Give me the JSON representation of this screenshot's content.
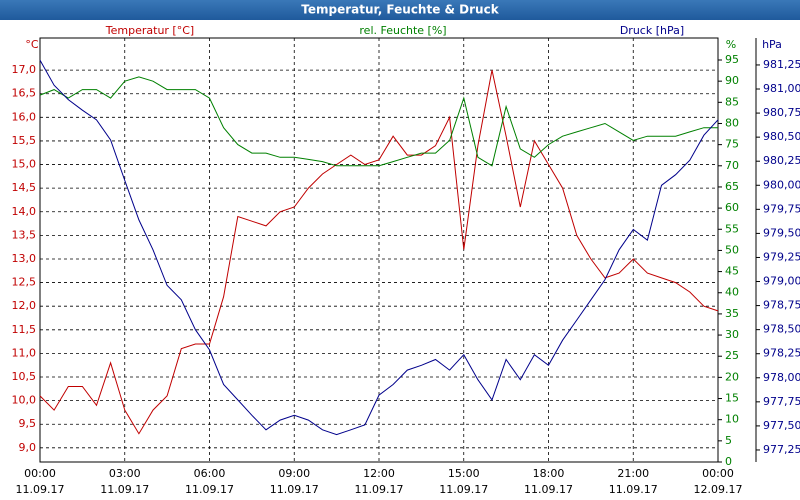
{
  "chart_data": {
    "type": "line",
    "title": "Temperatur, Feuchte & Druck",
    "grid": true,
    "x": [
      0,
      0.5,
      1,
      1.5,
      2,
      2.5,
      3,
      3.5,
      4,
      4.5,
      5,
      5.5,
      6,
      6.5,
      7,
      7.5,
      8,
      8.5,
      9,
      9.5,
      10,
      10.5,
      11,
      11.5,
      12,
      12.5,
      13,
      13.5,
      14,
      14.5,
      15,
      15.5,
      16,
      16.5,
      17,
      17.5,
      18,
      18.5,
      19,
      19.5,
      20,
      20.5,
      21,
      21.5,
      22,
      22.5,
      23,
      23.5,
      24
    ],
    "xlim": [
      0,
      24
    ],
    "xticks": [
      {
        "value": 0,
        "label": "00:00 11.09.17"
      },
      {
        "value": 3,
        "label": "03:00 11.09.17"
      },
      {
        "value": 6,
        "label": "06:00 11.09.17"
      },
      {
        "value": 9,
        "label": "09:00 11.09.17"
      },
      {
        "value": 12,
        "label": "12:00 11.09.17"
      },
      {
        "value": 15,
        "label": "15:00 11.09.17"
      },
      {
        "value": 18,
        "label": "18:00 11.09.17"
      },
      {
        "value": 21,
        "label": "21:00 11.09.17"
      },
      {
        "value": 24,
        "label": "00:00 12.09.17"
      }
    ],
    "ylim": [
      8.7,
      17.68
    ],
    "yticks": [
      {
        "value": 9.0,
        "label": "9,0"
      },
      {
        "value": 9.5,
        "label": "9,5"
      },
      {
        "value": 10.0,
        "label": "10,0"
      },
      {
        "value": 10.5,
        "label": "10,5"
      },
      {
        "value": 11.0,
        "label": "11,0"
      },
      {
        "value": 11.5,
        "label": "11,5"
      },
      {
        "value": 12.0,
        "label": "12,0"
      },
      {
        "value": 12.5,
        "label": "12,5"
      },
      {
        "value": 13.0,
        "label": "13,0"
      },
      {
        "value": 13.5,
        "label": "13,5"
      },
      {
        "value": 14.0,
        "label": "14,0"
      },
      {
        "value": 14.5,
        "label": "14,5"
      },
      {
        "value": 15.0,
        "label": "15,0"
      },
      {
        "value": 15.5,
        "label": "15,5"
      },
      {
        "value": 16.0,
        "label": "16,0"
      },
      {
        "value": 16.5,
        "label": "16,5"
      },
      {
        "value": 17.0,
        "label": "17,0"
      }
    ],
    "y2lim": [
      0,
      100.2
    ],
    "y2ticks": [
      0,
      5,
      10,
      15,
      20,
      25,
      30,
      35,
      40,
      45,
      50,
      55,
      60,
      65,
      70,
      75,
      80,
      85,
      90,
      95
    ],
    "y3lim": [
      977.125,
      981.53
    ],
    "y3ticks": [
      {
        "value": 977.25,
        "label": "977,25"
      },
      {
        "value": 977.5,
        "label": "977,50"
      },
      {
        "value": 977.75,
        "label": "977,75"
      },
      {
        "value": 978.0,
        "label": "978,00"
      },
      {
        "value": 978.25,
        "label": "978,25"
      },
      {
        "value": 978.5,
        "label": "978,50"
      },
      {
        "value": 978.75,
        "label": "978,75"
      },
      {
        "value": 979.0,
        "label": "979,00"
      },
      {
        "value": 979.25,
        "label": "979,25"
      },
      {
        "value": 979.5,
        "label": "979,50"
      },
      {
        "value": 979.75,
        "label": "979,75"
      },
      {
        "value": 980.0,
        "label": "980,00"
      },
      {
        "value": 980.25,
        "label": "980,25"
      },
      {
        "value": 980.5,
        "label": "980,50"
      },
      {
        "value": 980.75,
        "label": "980,75"
      },
      {
        "value": 981.0,
        "label": "981,00"
      },
      {
        "value": 981.25,
        "label": "981,25"
      }
    ],
    "series": [
      {
        "name": "Temperatur [°C]",
        "unit": "°C",
        "color": "#c00000",
        "axis": "y",
        "values": [
          10.1,
          9.8,
          10.3,
          10.3,
          9.9,
          10.8,
          9.8,
          9.3,
          9.8,
          10.1,
          11.1,
          11.2,
          11.2,
          12.2,
          13.9,
          13.8,
          13.7,
          14.0,
          14.1,
          14.5,
          14.8,
          15.0,
          15.2,
          15.0,
          15.1,
          15.6,
          15.2,
          15.2,
          15.4,
          16.0,
          13.2,
          15.4,
          17.0,
          15.6,
          14.1,
          15.5,
          15.0,
          14.5,
          13.5,
          13.0,
          12.6,
          12.7,
          13.0,
          12.7,
          12.6,
          12.5,
          12.3,
          12.0,
          11.9
        ]
      },
      {
        "name": "rel. Feuchte [%]",
        "unit": "%",
        "color": "#008000",
        "axis": "y2",
        "values": [
          86.7,
          88,
          86,
          88,
          88,
          86,
          90,
          91,
          90,
          88,
          88,
          88,
          86,
          79,
          75,
          73,
          73,
          72,
          72,
          71.5,
          71,
          70,
          70,
          70,
          70,
          71,
          72,
          73,
          73,
          76,
          86,
          72,
          70,
          84,
          74,
          72,
          75,
          77,
          78,
          79,
          80,
          78,
          76,
          77,
          77,
          77,
          78,
          79,
          79
        ]
      },
      {
        "name": "Druck [hPa]",
        "unit": "hPa",
        "color": "#00008b",
        "axis": "y3",
        "values": [
          981.3,
          981.04,
          980.89,
          980.78,
          980.68,
          980.47,
          980.05,
          979.64,
          979.33,
          978.96,
          978.81,
          978.5,
          978.29,
          977.93,
          977.77,
          977.61,
          977.46,
          977.56,
          977.61,
          977.56,
          977.46,
          977.41,
          977.46,
          977.51,
          977.82,
          977.93,
          978.08,
          978.13,
          978.19,
          978.08,
          978.24,
          977.98,
          977.77,
          978.19,
          977.98,
          978.24,
          978.13,
          978.39,
          978.6,
          978.81,
          979.02,
          979.33,
          979.54,
          979.43,
          980.0,
          980.11,
          980.26,
          980.52,
          980.68
        ]
      }
    ]
  }
}
